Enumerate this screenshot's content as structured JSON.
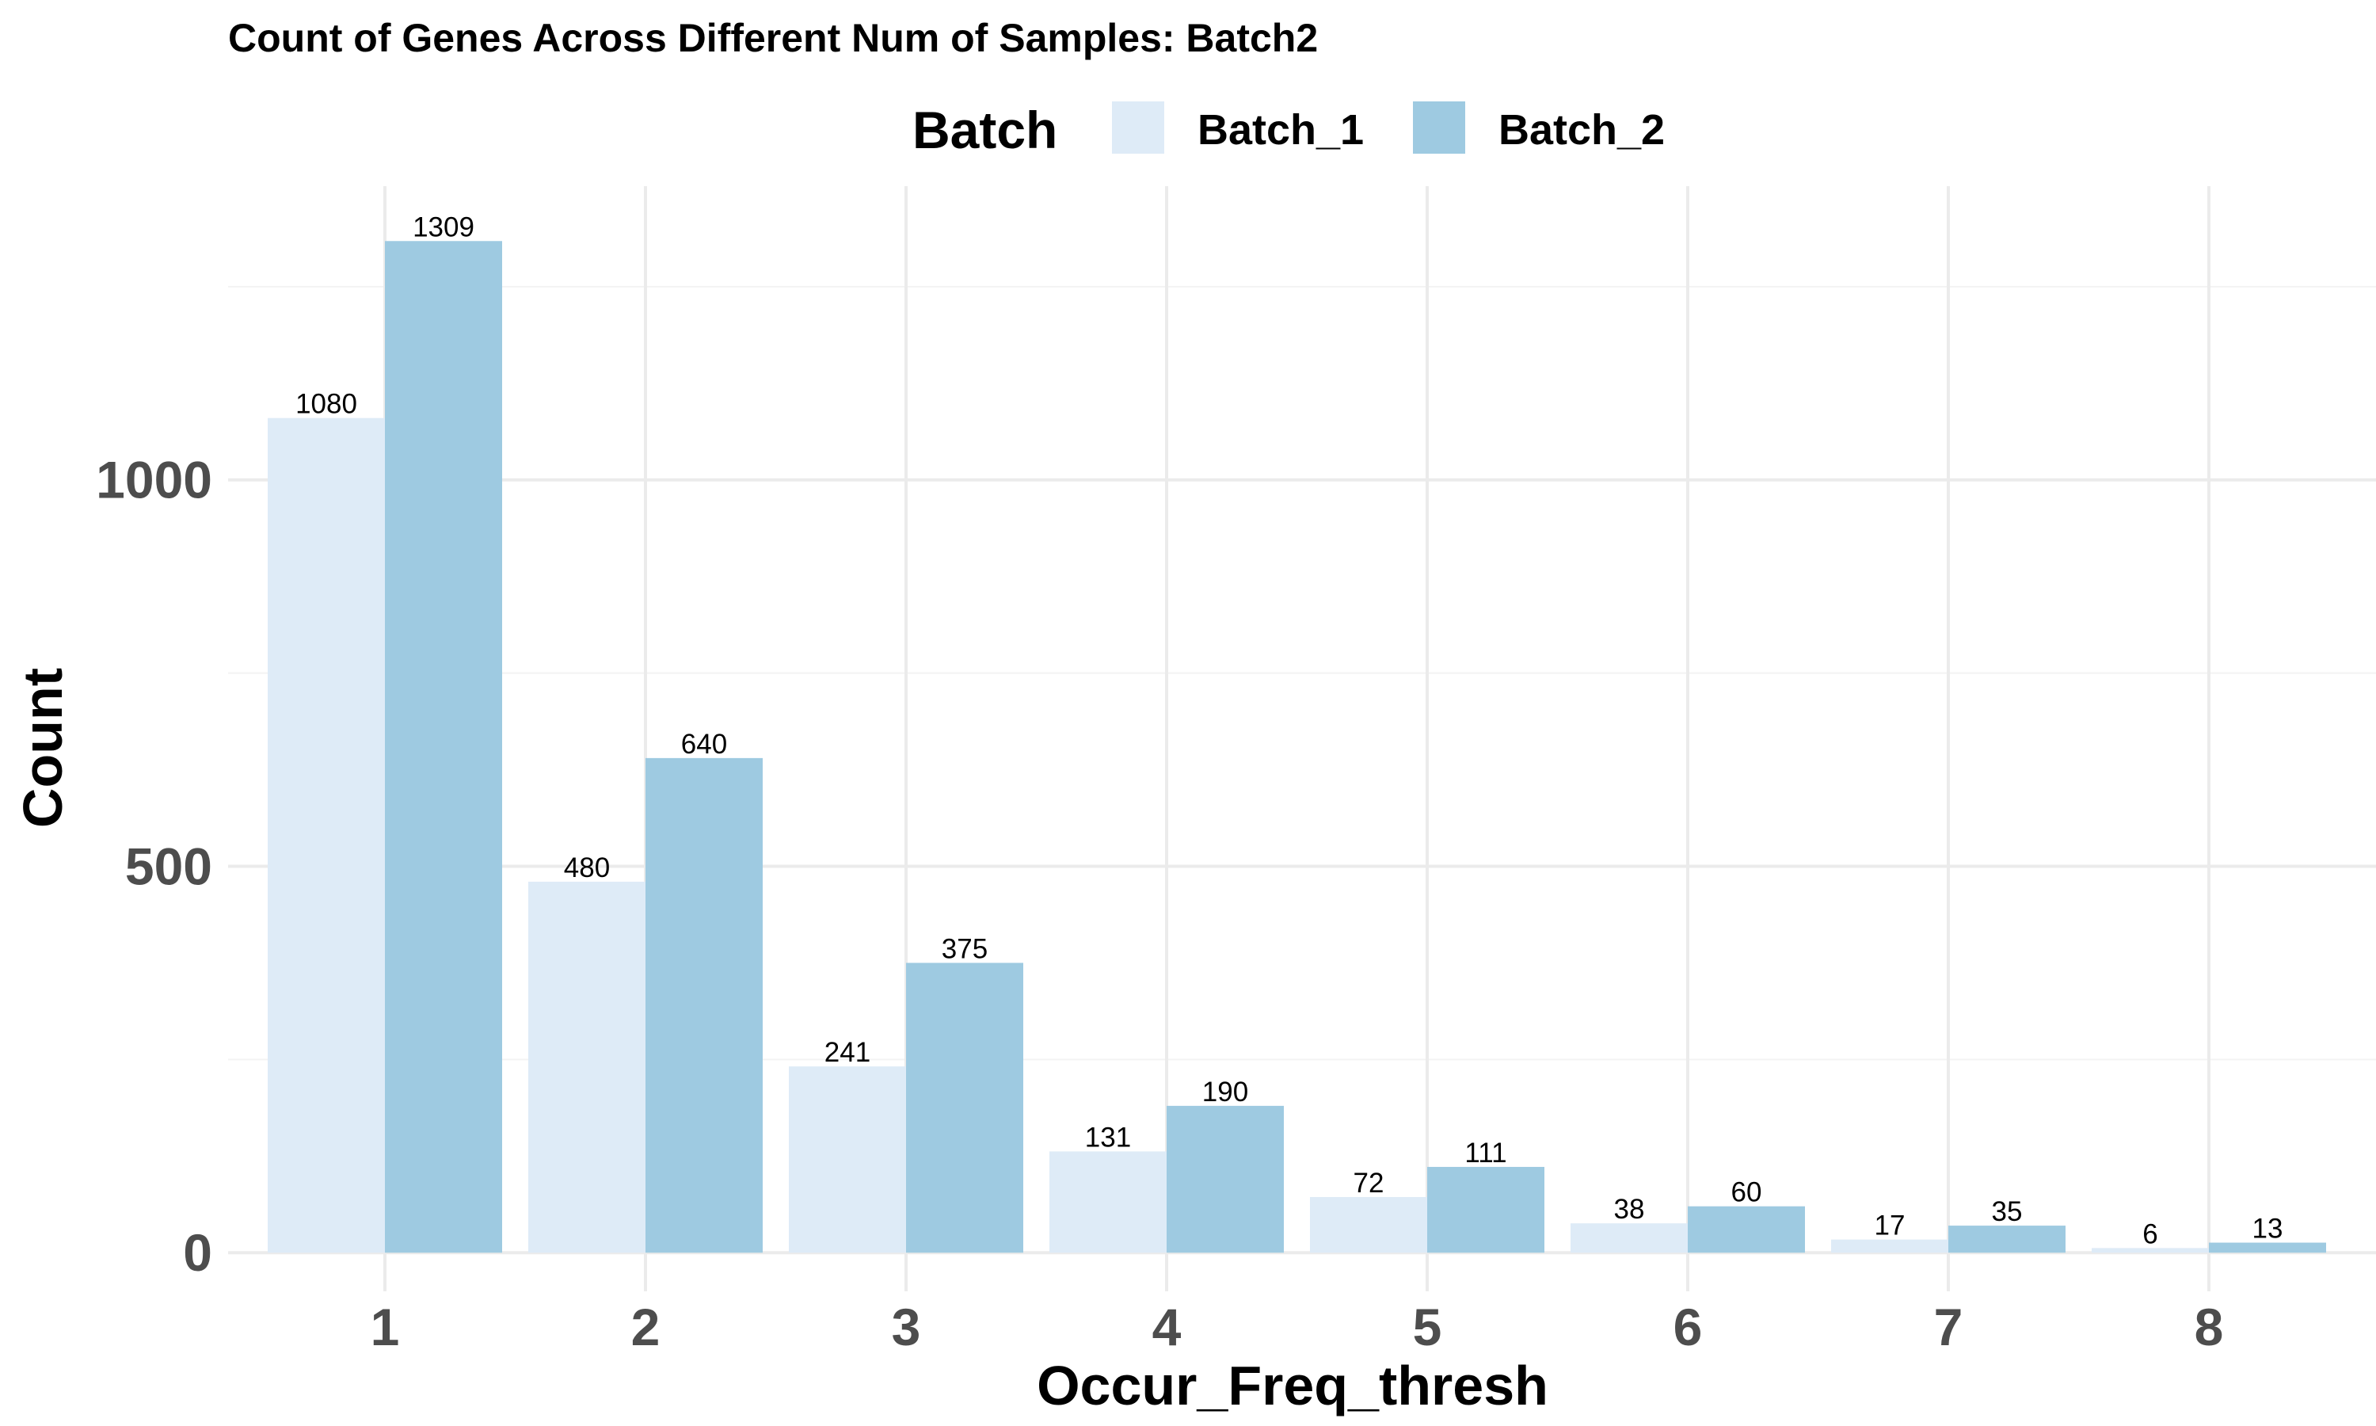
{
  "chart_data": {
    "type": "bar",
    "title": "Count of Genes Across Different Num of Samples: Batch2",
    "xlabel": "Occur_Freq_thresh",
    "ylabel": "Count",
    "categories": [
      "1",
      "2",
      "3",
      "4",
      "5",
      "6",
      "7",
      "8"
    ],
    "series": [
      {
        "name": "Batch_1",
        "color": "#deebf7",
        "values": [
          1080,
          480,
          241,
          131,
          72,
          38,
          17,
          6
        ]
      },
      {
        "name": "Batch_2",
        "color": "#9ecae1",
        "values": [
          1309,
          640,
          375,
          190,
          111,
          60,
          35,
          13
        ]
      }
    ],
    "legend": {
      "title": "Batch",
      "position": "top"
    },
    "ylim": [
      -50,
      1380
    ],
    "yticks": [
      0,
      500,
      1000
    ],
    "grid": true
  }
}
